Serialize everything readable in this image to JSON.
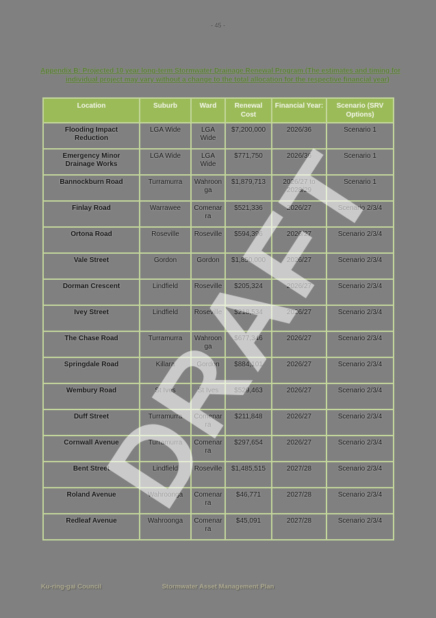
{
  "page": {
    "page_number": "- 45 -",
    "watermark": "DRAFT",
    "colors": {
      "background": "#808080",
      "table_header_bg": "#9bbb59",
      "table_grid": "#c3d69b",
      "title_text": "#567d2e",
      "footer_text": "#b2ae94"
    }
  },
  "title": {
    "text": "Appendix B: Projected 10 year long-term Stormwater Drainage Renewal Program (The estimates and timing for individual project may vary without a change to the total allocation for the respective financial year)"
  },
  "table": {
    "columns": {
      "location": "Location",
      "suburb": "Suburb",
      "ward": "Ward",
      "cost": "Renewal Cost",
      "year": "Financial Year:",
      "scenario": "Scenario (SRV Options)"
    },
    "rows": [
      {
        "location": "Flooding Impact Reduction",
        "suburb": "LGA Wide",
        "ward": "LGA Wide",
        "cost": "$7,200,000",
        "year": "2026/36",
        "scenario": "Scenario 1"
      },
      {
        "location": "Emergency Minor Drainage Works",
        "suburb": "LGA Wide",
        "ward": "LGA Wide",
        "cost": "$771,750",
        "year": "2026/36",
        "scenario": "Scenario 1"
      },
      {
        "location": "Bannockburn Road",
        "suburb": "Turramurra",
        "ward": "Wahroonga",
        "cost": "$1,879,713",
        "year": "2026/27 to 2028/29",
        "scenario": "Scenario 1"
      },
      {
        "location": "Finlay Road",
        "suburb": "Warrawee",
        "ward": "Comenarra",
        "cost": "$521,336",
        "year": "2026/27",
        "scenario": "Scenario 2/3/4"
      },
      {
        "location": "Ortona Road",
        "suburb": "Roseville",
        "ward": "Roseville",
        "cost": "$594,396",
        "year": "2026/27",
        "scenario": "Scenario 2/3/4"
      },
      {
        "location": "Vale Street",
        "suburb": "Gordon",
        "ward": "Gordon",
        "cost": "$1,850,000",
        "year": "2026/27",
        "scenario": "Scenario 2/3/4"
      },
      {
        "location": "Dorman Crescent",
        "suburb": "Lindfield",
        "ward": "Roseville",
        "cost": "$205,324",
        "year": "2026/27",
        "scenario": "Scenario 2/3/4"
      },
      {
        "location": "Ivey Street",
        "suburb": "Lindfield",
        "ward": "Roseville",
        "cost": "$218,534",
        "year": "2026/27",
        "scenario": "Scenario 2/3/4"
      },
      {
        "location": "The Chase Road",
        "suburb": "Turramurra",
        "ward": "Wahroonga",
        "cost": "$677,346",
        "year": "2026/27",
        "scenario": "Scenario 2/3/4"
      },
      {
        "location": "Springdale Road",
        "suburb": "Killara",
        "ward": "Gordon",
        "cost": "$884,101",
        "year": "2026/27",
        "scenario": "Scenario 2/3/4"
      },
      {
        "location": "Wembury Road",
        "suburb": "St Ives",
        "ward": "St Ives",
        "cost": "$529,463",
        "year": "2026/27",
        "scenario": "Scenario 2/3/4"
      },
      {
        "location": "Duff Street",
        "suburb": "Turramurra",
        "ward": "Comenarra",
        "cost": "$211,848",
        "year": "2026/27",
        "scenario": "Scenario 2/3/4"
      },
      {
        "location": "Cornwall Avenue",
        "suburb": "Turramurra",
        "ward": "Comenarra",
        "cost": "$297,654",
        "year": "2026/27",
        "scenario": "Scenario 2/3/4"
      },
      {
        "location": "Bent Street",
        "suburb": "Lindfield",
        "ward": "Roseville",
        "cost": "$1,485,515",
        "year": "2027/28",
        "scenario": "Scenario 2/3/4"
      },
      {
        "location": "Roland Avenue",
        "suburb": "Wahroonga",
        "ward": "Comenarra",
        "cost": "$46,771",
        "year": "2027/28",
        "scenario": "Scenario 2/3/4"
      },
      {
        "location": "Redleaf Avenue",
        "suburb": "Wahroonga",
        "ward": "Comenarra",
        "cost": "$45,091",
        "year": "2027/28",
        "scenario": "Scenario 2/3/4"
      }
    ]
  },
  "footer": {
    "left": "Ku-ring-gai Council",
    "center": "Stormwater Asset Management Plan"
  }
}
